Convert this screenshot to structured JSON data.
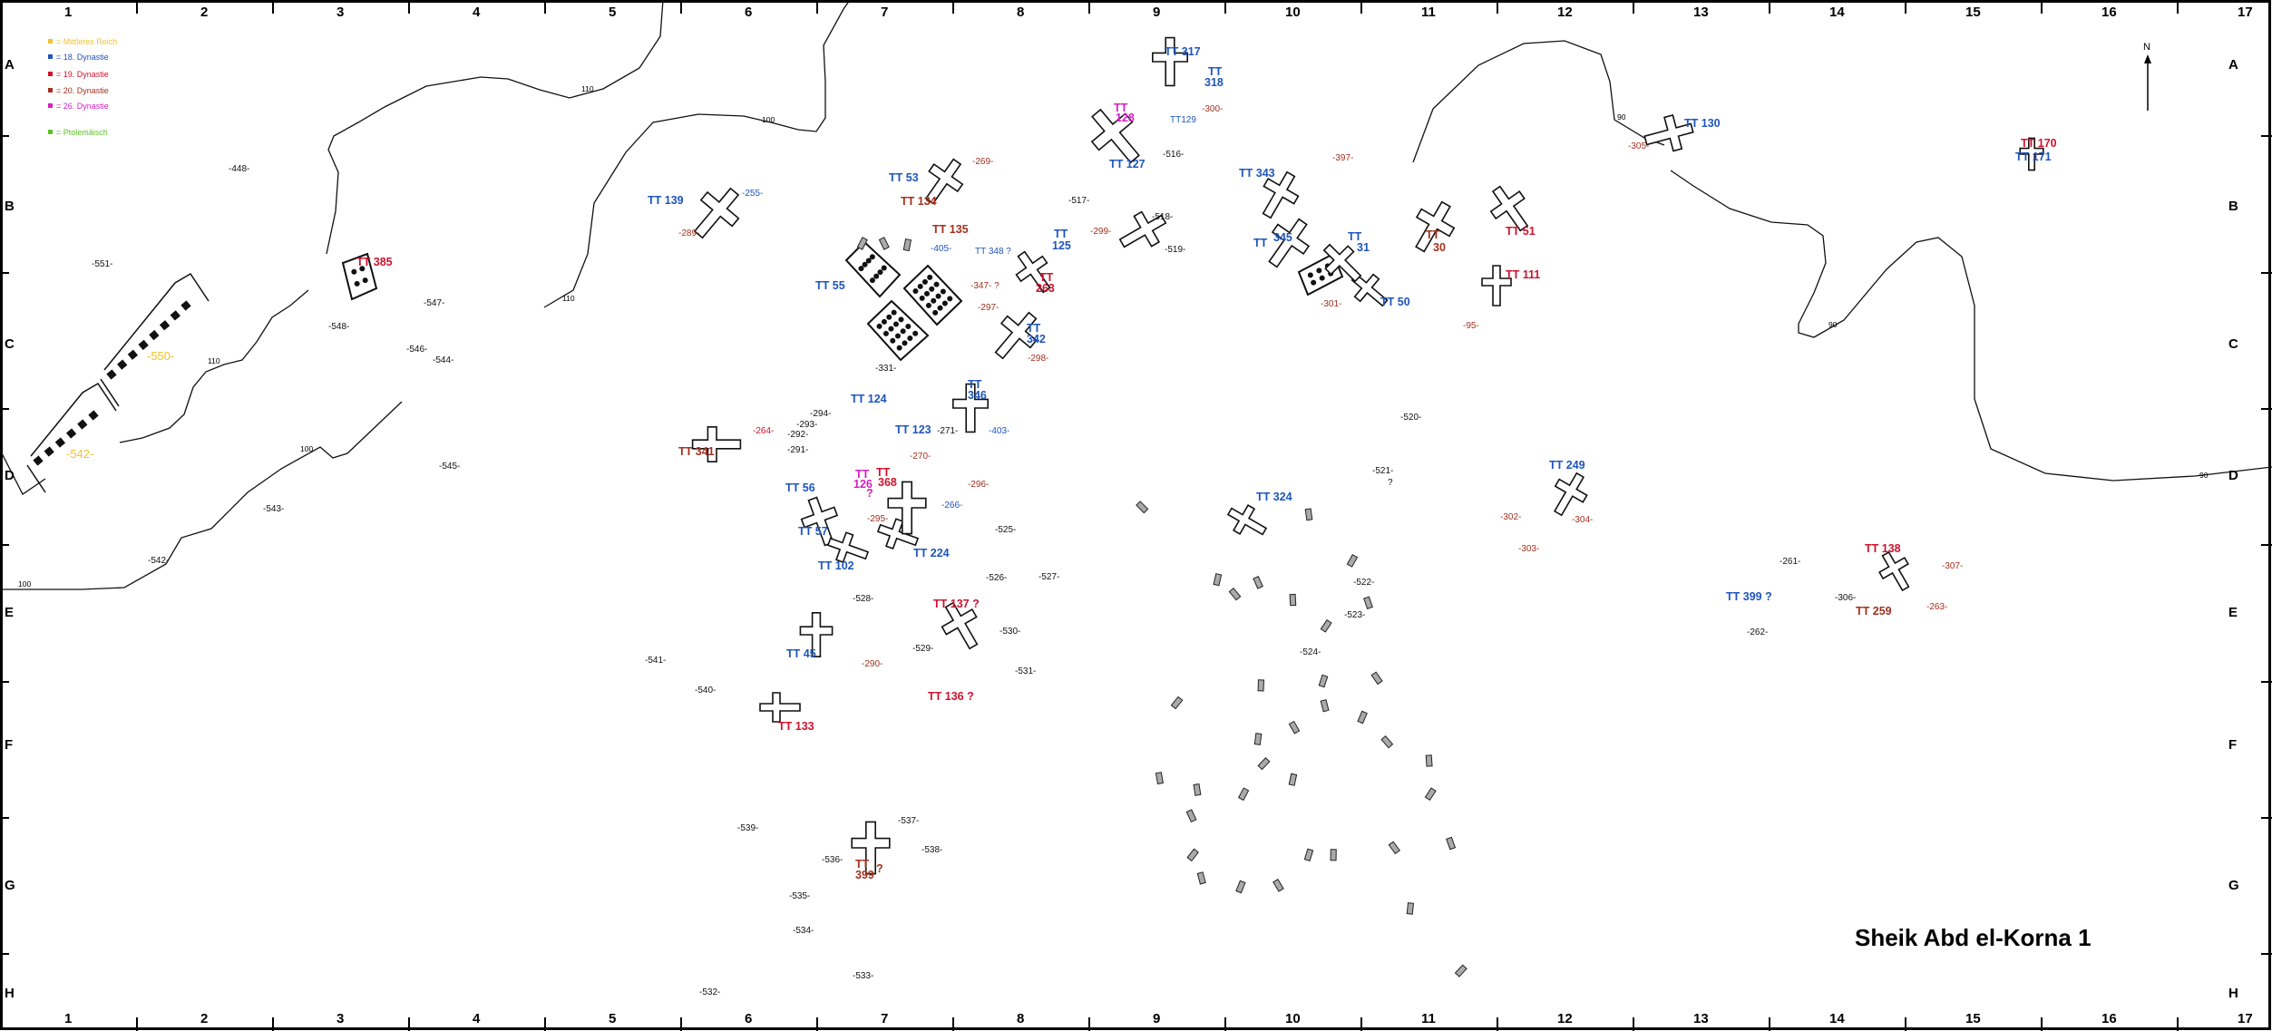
{
  "title": "Sheik Abd el-Korna 1",
  "north": "N",
  "grid": {
    "columns": [
      "1",
      "2",
      "3",
      "4",
      "5",
      "6",
      "7",
      "8",
      "9",
      "10",
      "11",
      "12",
      "13",
      "14",
      "15",
      "16",
      "17"
    ],
    "rows": [
      "A",
      "B",
      "C",
      "D",
      "E",
      "F",
      "G",
      "H"
    ]
  },
  "legend": [
    {
      "label": "= Mittleres Reich",
      "color": "#f2c230"
    },
    {
      "label": "= 18. Dynastie",
      "color": "#1f55bd"
    },
    {
      "label": "= 19. Dynastie",
      "color": "#d0122e"
    },
    {
      "label": "= 20. Dynastie",
      "color": "#a3301d"
    },
    {
      "label": "= 26. Dynastie",
      "color": "#d41fc4"
    },
    {
      "label": "= Ptolemäisch",
      "color": "#5cc224"
    }
  ],
  "contour_labels": [
    "110",
    "110",
    "100",
    "110",
    "100",
    "100",
    "90",
    "90",
    "90"
  ],
  "labels": [
    {
      "lines": [
        "TT 139"
      ],
      "period": "18",
      "bold": true
    },
    {
      "lines": [
        "-255-"
      ],
      "period": "18"
    },
    {
      "lines": [
        "-289-"
      ],
      "period": "20"
    },
    {
      "lines": [
        "TT 53"
      ],
      "period": "18",
      "bold": true
    },
    {
      "lines": [
        "-269-"
      ],
      "period": "20"
    },
    {
      "lines": [
        "TT 134"
      ],
      "period": "20",
      "bold": true
    },
    {
      "lines": [
        "TT 135"
      ],
      "period": "20",
      "bold": true
    },
    {
      "lines": [
        "-405-"
      ],
      "period": "18"
    },
    {
      "lines": [
        "TT 348 ?"
      ],
      "period": "18"
    },
    {
      "lines": [
        "TT",
        "125"
      ],
      "period": "18",
      "bold": true
    },
    {
      "lines": [
        "TT",
        "263"
      ],
      "period": "19",
      "bold": true
    },
    {
      "lines": [
        "-347- ?"
      ],
      "period": "20"
    },
    {
      "lines": [
        "TT 55"
      ],
      "period": "18",
      "bold": true
    },
    {
      "lines": [
        "-297-"
      ],
      "period": "20"
    },
    {
      "lines": [
        "TT",
        "342"
      ],
      "period": "18",
      "bold": true
    },
    {
      "lines": [
        "-298-"
      ],
      "period": "20"
    },
    {
      "lines": [
        "-331-"
      ],
      "period": "none"
    },
    {
      "lines": [
        "TT",
        "346"
      ],
      "period": "18",
      "bold": true
    },
    {
      "lines": [
        "TT 124"
      ],
      "period": "18",
      "bold": true
    },
    {
      "lines": [
        "-294-"
      ],
      "period": "none"
    },
    {
      "lines": [
        "-293-"
      ],
      "period": "none"
    },
    {
      "lines": [
        "-292-"
      ],
      "period": "none"
    },
    {
      "lines": [
        "-291-"
      ],
      "period": "none"
    },
    {
      "lines": [
        "-264-"
      ],
      "period": "19"
    },
    {
      "lines": [
        "TT 341"
      ],
      "period": "20",
      "bold": true
    },
    {
      "lines": [
        "TT 123"
      ],
      "period": "18",
      "bold": true
    },
    {
      "lines": [
        "-271-"
      ],
      "period": "none"
    },
    {
      "lines": [
        "-403-"
      ],
      "period": "18"
    },
    {
      "lines": [
        "-270-"
      ],
      "period": "20"
    },
    {
      "lines": [
        "TT 56"
      ],
      "period": "18",
      "bold": true
    },
    {
      "lines": [
        "TT",
        "126",
        "?"
      ],
      "period": "26",
      "bold": true
    },
    {
      "lines": [
        "TT",
        "368"
      ],
      "period": "19",
      "bold": true
    },
    {
      "lines": [
        "-296-"
      ],
      "period": "20"
    },
    {
      "lines": [
        "-266-"
      ],
      "period": "18"
    },
    {
      "lines": [
        "-295-"
      ],
      "period": "20"
    },
    {
      "lines": [
        "TT 57"
      ],
      "period": "18",
      "bold": true
    },
    {
      "lines": [
        "TT 224"
      ],
      "period": "18",
      "bold": true
    },
    {
      "lines": [
        "TT 102"
      ],
      "period": "18",
      "bold": true
    },
    {
      "lines": [
        "-525-"
      ],
      "period": "none"
    },
    {
      "lines": [
        "-526-"
      ],
      "period": "none"
    },
    {
      "lines": [
        "-527-"
      ],
      "period": "none"
    },
    {
      "lines": [
        "-528-"
      ],
      "period": "none"
    },
    {
      "lines": [
        "TT 137 ?"
      ],
      "period": "19",
      "bold": true
    },
    {
      "lines": [
        "-541-"
      ],
      "period": "none"
    },
    {
      "lines": [
        "-540-"
      ],
      "period": "none"
    },
    {
      "lines": [
        "TT 45"
      ],
      "period": "18",
      "bold": true
    },
    {
      "lines": [
        "-290-"
      ],
      "period": "20"
    },
    {
      "lines": [
        "TT 133"
      ],
      "period": "19",
      "bold": true
    },
    {
      "lines": [
        "-529-"
      ],
      "period": "none"
    },
    {
      "lines": [
        "-530-"
      ],
      "period": "none"
    },
    {
      "lines": [
        "-531-"
      ],
      "period": "none"
    },
    {
      "lines": [
        "TT 136 ?"
      ],
      "period": "19",
      "bold": true
    },
    {
      "lines": [
        "-539-"
      ],
      "period": "none"
    },
    {
      "lines": [
        "-537-"
      ],
      "period": "none"
    },
    {
      "lines": [
        "-538-"
      ],
      "period": "none"
    },
    {
      "lines": [
        "-536-"
      ],
      "period": "none"
    },
    {
      "lines": [
        "TT",
        "399",
        "?"
      ],
      "period": "20",
      "bold": true
    },
    {
      "lines": [
        "-535-"
      ],
      "period": "none"
    },
    {
      "lines": [
        "-534-"
      ],
      "period": "none"
    },
    {
      "lines": [
        "-533-"
      ],
      "period": "none"
    },
    {
      "lines": [
        "-532-"
      ],
      "period": "none"
    },
    {
      "lines": [
        "TT 317"
      ],
      "period": "18",
      "bold": true
    },
    {
      "lines": [
        "TT",
        "318"
      ],
      "period": "18",
      "bold": true
    },
    {
      "lines": [
        "TT",
        "128"
      ],
      "period": "26",
      "bold": true
    },
    {
      "lines": [
        "-300-"
      ],
      "period": "20"
    },
    {
      "lines": [
        "TT129"
      ],
      "period": "18"
    },
    {
      "lines": [
        "-516-"
      ],
      "period": "none"
    },
    {
      "lines": [
        "TT 127"
      ],
      "period": "18",
      "bold": true
    },
    {
      "lines": [
        "-517-"
      ],
      "period": "none"
    },
    {
      "lines": [
        "-518-"
      ],
      "period": "none"
    },
    {
      "lines": [
        "-519-"
      ],
      "period": "none"
    },
    {
      "lines": [
        "-299-"
      ],
      "period": "20"
    },
    {
      "lines": [
        "TT 343"
      ],
      "period": "18",
      "bold": true
    },
    {
      "lines": [
        "-397-"
      ],
      "period": "20"
    },
    {
      "lines": [
        "TT",
        "345"
      ],
      "period": "18",
      "bold": true
    },
    {
      "lines": [
        "TT",
        "31"
      ],
      "period": "18",
      "bold": true
    },
    {
      "lines": [
        "TT",
        "30"
      ],
      "period": "20",
      "bold": true
    },
    {
      "lines": [
        "TT 51"
      ],
      "period": "19",
      "bold": true
    },
    {
      "lines": [
        "TT 111"
      ],
      "period": "19",
      "bold": true
    },
    {
      "lines": [
        "-301-"
      ],
      "period": "20"
    },
    {
      "lines": [
        "TT 50"
      ],
      "period": "18",
      "bold": true
    },
    {
      "lines": [
        "-95-"
      ],
      "period": "20"
    },
    {
      "lines": [
        "TT 130"
      ],
      "period": "18",
      "bold": true
    },
    {
      "lines": [
        "-305-"
      ],
      "period": "20"
    },
    {
      "lines": [
        "TT 170"
      ],
      "period": "19",
      "bold": true
    },
    {
      "lines": [
        "TT 171"
      ],
      "period": "18",
      "bold": true
    },
    {
      "lines": [
        "-520-"
      ],
      "period": "none"
    },
    {
      "lines": [
        "-521-",
        "?"
      ],
      "period": "none"
    },
    {
      "lines": [
        "TT 324"
      ],
      "period": "18",
      "bold": true
    },
    {
      "lines": [
        "-522-"
      ],
      "period": "none"
    },
    {
      "lines": [
        "-523-"
      ],
      "period": "none"
    },
    {
      "lines": [
        "-524-"
      ],
      "period": "none"
    },
    {
      "lines": [
        "TT 249"
      ],
      "period": "18",
      "bold": true
    },
    {
      "lines": [
        "-302-"
      ],
      "period": "20"
    },
    {
      "lines": [
        "-304-"
      ],
      "period": "20"
    },
    {
      "lines": [
        "-303-"
      ],
      "period": "20"
    },
    {
      "lines": [
        "TT 138"
      ],
      "period": "19",
      "bold": true
    },
    {
      "lines": [
        "-307-"
      ],
      "period": "20"
    },
    {
      "lines": [
        "-261-"
      ],
      "period": "none"
    },
    {
      "lines": [
        "TT 399 ?"
      ],
      "period": "18",
      "bold": true
    },
    {
      "lines": [
        "-306-"
      ],
      "period": "none"
    },
    {
      "lines": [
        "-262-"
      ],
      "period": "none"
    },
    {
      "lines": [
        "TT 259"
      ],
      "period": "20",
      "bold": true
    },
    {
      "lines": [
        "-263-"
      ],
      "period": "20"
    },
    {
      "lines": [
        "-448-"
      ],
      "period": "none"
    },
    {
      "lines": [
        "-551-"
      ],
      "period": "none"
    },
    {
      "lines": [
        "TT 385"
      ],
      "period": "19",
      "bold": true
    },
    {
      "lines": [
        "-547-"
      ],
      "period": "none"
    },
    {
      "lines": [
        "-548-"
      ],
      "period": "none"
    },
    {
      "lines": [
        "-546-"
      ],
      "period": "none"
    },
    {
      "lines": [
        "-544-"
      ],
      "period": "none"
    },
    {
      "lines": [
        "-550-"
      ],
      "period": "mr"
    },
    {
      "lines": [
        "-542-"
      ],
      "period": "mr"
    },
    {
      "lines": [
        "-545-"
      ],
      "period": "none"
    },
    {
      "lines": [
        "-543-"
      ],
      "period": "none"
    },
    {
      "lines": [
        "-542-"
      ],
      "period": "none"
    }
  ]
}
